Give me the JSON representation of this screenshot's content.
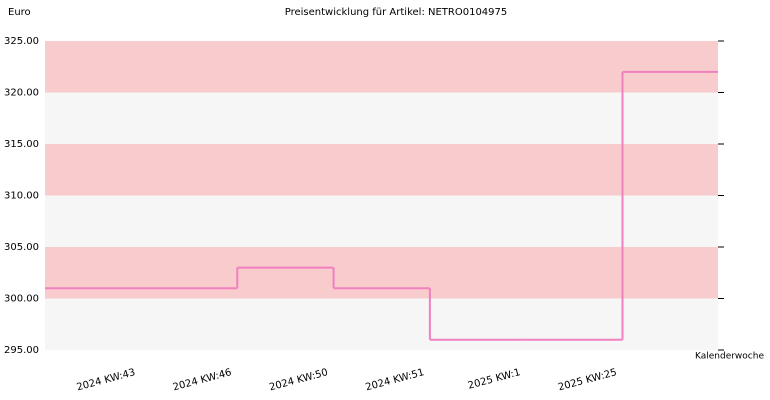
{
  "chart_data": {
    "type": "step",
    "title": "Preisentwicklung für Artikel: NETRO0104975",
    "y_label": "Euro",
    "x_label": "Kalenderwoche",
    "categories": [
      "2024 KW:43",
      "2024 KW:46",
      "2024 KW:50",
      "2024 KW:51",
      "2025 KW:1",
      "2025 KW:25"
    ],
    "values": [
      301,
      303,
      301,
      296,
      296,
      322
    ],
    "color": "#f080c0",
    "ylim": [
      295,
      325
    ],
    "yticks": [
      {
        "value": 295,
        "label": "295.00"
      },
      {
        "value": 300,
        "label": "300.00"
      },
      {
        "value": 305,
        "label": "305.00"
      },
      {
        "value": 310,
        "label": "310.00"
      },
      {
        "value": 315,
        "label": "315.00"
      },
      {
        "value": 320,
        "label": "320.00"
      },
      {
        "value": 325,
        "label": "325.00"
      }
    ],
    "band_colors": [
      "#f6f6f6",
      "#f8cccc"
    ]
  }
}
